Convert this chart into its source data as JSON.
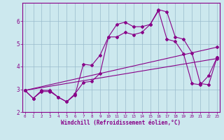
{
  "xlabel": "Windchill (Refroidissement éolien,°C)",
  "bg_color": "#cce8ee",
  "line_color": "#880088",
  "grid_color": "#99bbcc",
  "line1_x": [
    0,
    1,
    2,
    3,
    4,
    5,
    6,
    7,
    8,
    9,
    10,
    11,
    12,
    13,
    14,
    15,
    16,
    17,
    18,
    19,
    20,
    21,
    22,
    23
  ],
  "line1_y": [
    2.95,
    2.6,
    2.95,
    2.95,
    2.65,
    2.45,
    2.75,
    4.1,
    4.05,
    4.5,
    5.3,
    5.85,
    5.95,
    5.75,
    5.75,
    5.85,
    6.5,
    6.4,
    5.3,
    5.2,
    4.6,
    3.25,
    3.2,
    4.4
  ],
  "line2_x": [
    0,
    1,
    2,
    3,
    4,
    5,
    6,
    7,
    8,
    9,
    10,
    11,
    12,
    13,
    14,
    15,
    16,
    17,
    18,
    19,
    20,
    21,
    22,
    23
  ],
  "line2_y": [
    2.95,
    2.6,
    2.9,
    2.9,
    2.65,
    2.45,
    2.8,
    3.3,
    3.35,
    3.7,
    5.3,
    5.3,
    5.5,
    5.4,
    5.5,
    5.85,
    6.45,
    5.2,
    5.1,
    4.55,
    3.25,
    3.2,
    3.6,
    4.4
  ],
  "line3_x": [
    0,
    23
  ],
  "line3_y": [
    2.95,
    4.85
  ],
  "line4_x": [
    0,
    23
  ],
  "line4_y": [
    2.95,
    4.35
  ],
  "ylim": [
    2.0,
    6.8
  ],
  "xlim": [
    -0.3,
    23.3
  ],
  "yticks": [
    2,
    3,
    4,
    5,
    6
  ],
  "xticks": [
    0,
    1,
    2,
    3,
    4,
    5,
    6,
    7,
    8,
    9,
    10,
    11,
    12,
    13,
    14,
    15,
    16,
    17,
    18,
    19,
    20,
    21,
    22,
    23
  ],
  "marker": "D",
  "ms": 2.0,
  "lw": 0.8
}
